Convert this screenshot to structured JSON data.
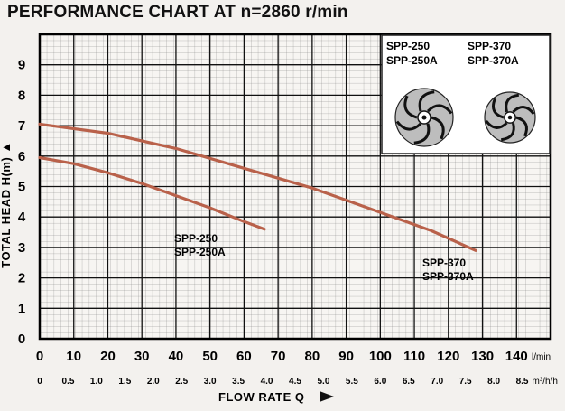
{
  "chart_data": {
    "type": "line",
    "title": "PERFORMANCE CHART AT n=2860 r/min",
    "xlabel": "FLOW RATE Q",
    "ylabel": "TOTAL HEAD H(m)",
    "x_unit": "l/min",
    "x2_unit": "m³/h",
    "xlim": [
      0,
      150
    ],
    "ylim": [
      0,
      10
    ],
    "x_ticks": [
      "0",
      "10",
      "20",
      "30",
      "40",
      "50",
      "60",
      "70",
      "80",
      "90",
      "100",
      "110",
      "120",
      "130",
      "140"
    ],
    "x2_ticks": [
      "0",
      "0.5",
      "1.0",
      "1.5",
      "2.0",
      "2.5",
      "3.0",
      "3.5",
      "4.0",
      "4.5",
      "5.0",
      "5.5",
      "6.0",
      "6.5",
      "7.0",
      "7.5",
      "8.0",
      "8.5"
    ],
    "y_ticks": [
      "0",
      "1",
      "2",
      "3",
      "4",
      "5",
      "6",
      "7",
      "8",
      "9"
    ],
    "grid": true,
    "series": [
      {
        "name": "SPP-250 / SPP-250A",
        "label_lines": [
          "SPP-250",
          "SPP-250A"
        ],
        "color": "#b9614a",
        "x": [
          0,
          10,
          20,
          30,
          40,
          50,
          60,
          66
        ],
        "y": [
          5.95,
          5.75,
          5.45,
          5.1,
          4.7,
          4.3,
          3.85,
          3.6
        ]
      },
      {
        "name": "SPP-370 / SPP-370A",
        "label_lines": [
          "SPP-370",
          "SPP-370A"
        ],
        "color": "#b9614a",
        "x": [
          0,
          20,
          40,
          60,
          80,
          100,
          115,
          128
        ],
        "y": [
          7.05,
          6.75,
          6.25,
          5.6,
          4.95,
          4.15,
          3.55,
          2.9
        ]
      }
    ],
    "inset": {
      "labels": [
        [
          "SPP-250",
          "SPP-250A"
        ],
        [
          "SPP-370",
          "SPP-370A"
        ]
      ]
    }
  }
}
